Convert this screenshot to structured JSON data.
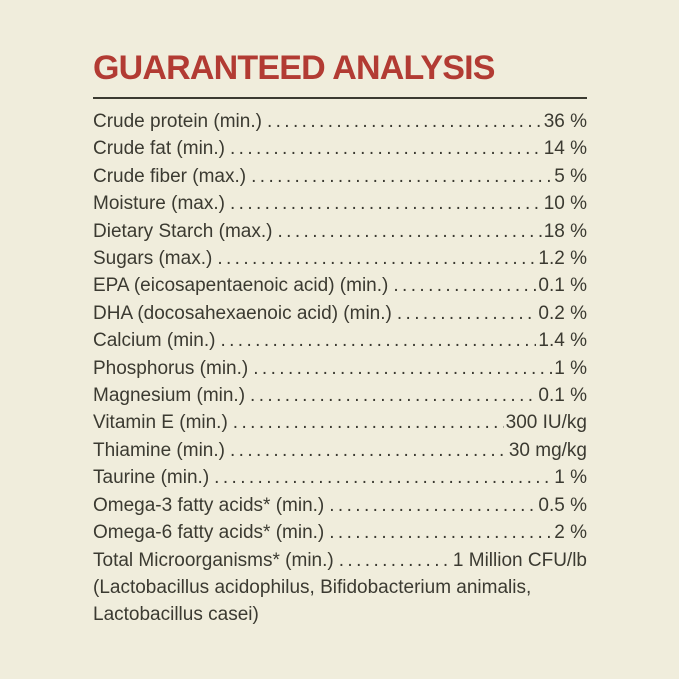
{
  "panel": {
    "title": "GUARANTEED ANALYSIS",
    "colors": {
      "background": "#f0eddc",
      "text": "#3b3a31",
      "heading": "#b23b33",
      "rule": "#3b3a31"
    }
  },
  "analysis": {
    "rows": [
      {
        "label": "Crude protein (min.)",
        "value": "36 %"
      },
      {
        "label": "Crude fat (min.)",
        "value": "14 %"
      },
      {
        "label": "Crude fiber (max.)",
        "value": "5 %"
      },
      {
        "label": "Moisture (max.)",
        "value": "10 %"
      },
      {
        "label": "Dietary Starch (max.)",
        "value": "18 %"
      },
      {
        "label": "Sugars (max.)",
        "value": "1.2 %"
      },
      {
        "label": "EPA (eicosapentaenoic acid) (min.)",
        "value": "0.1 %"
      },
      {
        "label": "DHA (docosahexaenoic acid) (min.)",
        "value": "0.2 %"
      },
      {
        "label": "Calcium (min.)",
        "value": "1.4 %"
      },
      {
        "label": "Phosphorus (min.)",
        "value": "1 %"
      },
      {
        "label": "Magnesium (min.)",
        "value": "0.1 %"
      },
      {
        "label": "Vitamin E (min.)",
        "value": "300 IU/kg"
      },
      {
        "label": "Thiamine (min.)",
        "value": "30 mg/kg"
      },
      {
        "label": "Taurine (min.)",
        "value": "1 %"
      },
      {
        "label": "Omega-3 fatty acids* (min.)",
        "value": "0.5 %"
      },
      {
        "label": "Omega-6 fatty acids* (min.)",
        "value": "2 %"
      },
      {
        "label": "Total Microorganisms* (min.)",
        "value": "1 Million CFU/lb"
      }
    ],
    "footnote_lines": [
      "(Lactobacillus acidophilus, Bifidobacterium animalis,",
      "Lactobacillus casei)"
    ]
  }
}
